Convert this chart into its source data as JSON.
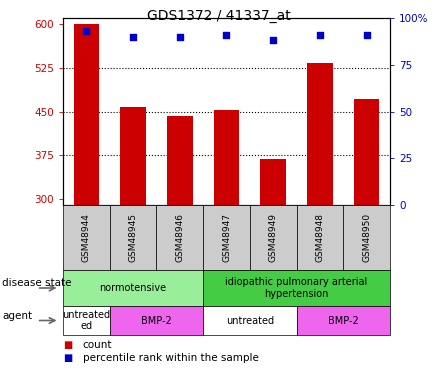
{
  "title": "GDS1372 / 41337_at",
  "samples": [
    "GSM48944",
    "GSM48945",
    "GSM48946",
    "GSM48947",
    "GSM48949",
    "GSM48948",
    "GSM48950"
  ],
  "counts": [
    600,
    457,
    443,
    452,
    369,
    533,
    471
  ],
  "percentile_ranks": [
    93,
    90,
    90,
    91,
    88,
    91,
    91
  ],
  "ylim_left": [
    290,
    610
  ],
  "ylim_right": [
    0,
    100
  ],
  "yticks_left": [
    300,
    375,
    450,
    525,
    600
  ],
  "yticks_right": [
    0,
    25,
    50,
    75,
    100
  ],
  "bar_color": "#cc0000",
  "dot_color": "#0000cc",
  "grid_color": "#000000",
  "disease_state": [
    {
      "label": "normotensive",
      "start": 0,
      "end": 3,
      "color": "#99ee99"
    },
    {
      "label": "idiopathic pulmonary arterial\nhypertension",
      "start": 3,
      "end": 7,
      "color": "#44cc44"
    }
  ],
  "agent": [
    {
      "label": "untreated\ned",
      "start": 0,
      "end": 1,
      "color": "#ffffff"
    },
    {
      "label": "BMP-2",
      "start": 1,
      "end": 3,
      "color": "#ee66ee"
    },
    {
      "label": "untreated",
      "start": 3,
      "end": 5,
      "color": "#ffffff"
    },
    {
      "label": "BMP-2",
      "start": 5,
      "end": 7,
      "color": "#ee66ee"
    }
  ],
  "legend_count_label": "count",
  "legend_pct_label": "percentile rank within the sample",
  "left_label_color": "#cc0000",
  "right_label_color": "#0000cc",
  "sample_row_color": "#cccccc"
}
